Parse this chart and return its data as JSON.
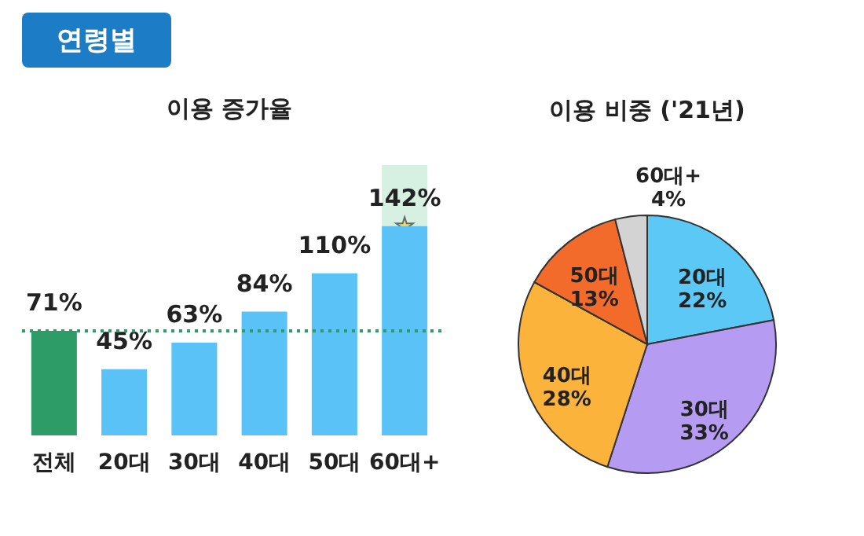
{
  "chart_data": [
    {
      "type": "bar",
      "title": "이용 증가율",
      "annotations": [
        "연령별"
      ],
      "categories": [
        "전체",
        "20대",
        "30대",
        "40대",
        "50대",
        "60대+"
      ],
      "values": [
        71,
        45,
        63,
        84,
        110,
        142
      ],
      "colors": [
        "#2e9c66",
        "#5bc2f7",
        "#5bc2f7",
        "#5bc2f7",
        "#5bc2f7",
        "#5bc2f7"
      ],
      "value_labels": [
        "71%",
        "45%",
        "63%",
        "84%",
        "110%",
        "142%"
      ],
      "ref_lines": [
        {
          "axis": "y",
          "value": 71,
          "color": "#2e9c66",
          "line_style": "dotted"
        }
      ],
      "bands": [
        {
          "axis": "x",
          "from": "60대+",
          "to": "60대+",
          "color": "#d6f0e2"
        }
      ]
    },
    {
      "type": "pie",
      "title": "이용 비중 ('21년)",
      "categories": [
        "20대",
        "30대",
        "40대",
        "50대",
        "60대+"
      ],
      "values": [
        22,
        33,
        28,
        13,
        4
      ],
      "colors": [
        "#5bc8f5",
        "#b59cf2",
        "#fbb33b",
        "#f26b2a",
        "#d3d3d3"
      ],
      "value_labels": [
        "22%",
        "33%",
        "28%",
        "13%",
        "4%"
      ]
    }
  ]
}
